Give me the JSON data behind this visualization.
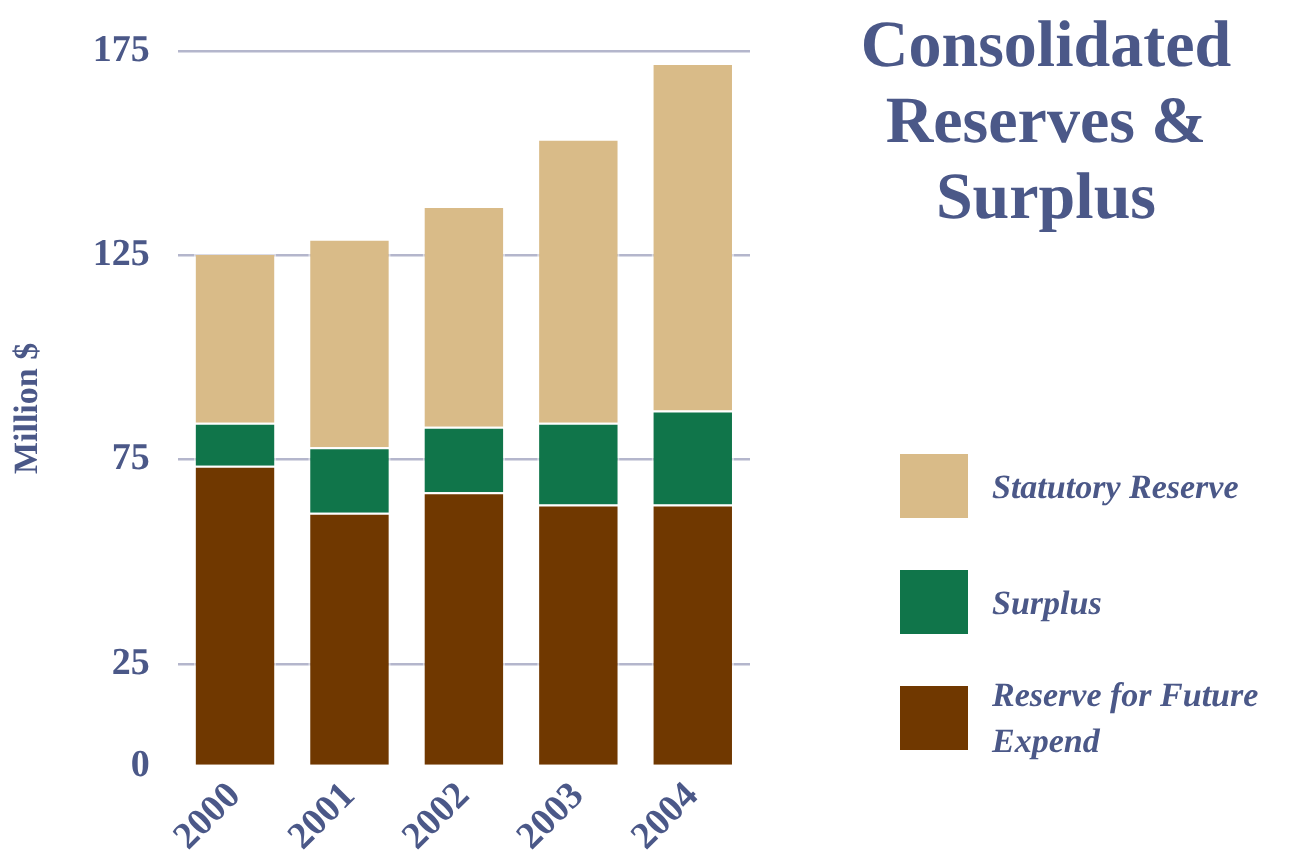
{
  "chart_data": {
    "type": "bar",
    "title": "Consolidated Reserves & Surplus",
    "ylabel": "Million $",
    "categories": [
      "2000",
      "2001",
      "2002",
      "2003",
      "2004"
    ],
    "series": [
      {
        "name": "Reserve for Future Expend",
        "color": "#703800",
        "values": [
          73.5,
          62,
          67,
          64,
          64
        ]
      },
      {
        "name": "Surplus",
        "color": "#10754a",
        "values": [
          10.5,
          16,
          16,
          20,
          23
        ]
      },
      {
        "name": "Statutory Reserve",
        "color": "#d9bb88",
        "values": [
          41.5,
          51,
          54,
          69.5,
          85
        ]
      }
    ],
    "stacked": true,
    "ylim": [
      0,
      175
    ],
    "yticks": [
      0,
      25,
      75,
      125,
      175
    ],
    "grid": "y",
    "legend": "right"
  }
}
